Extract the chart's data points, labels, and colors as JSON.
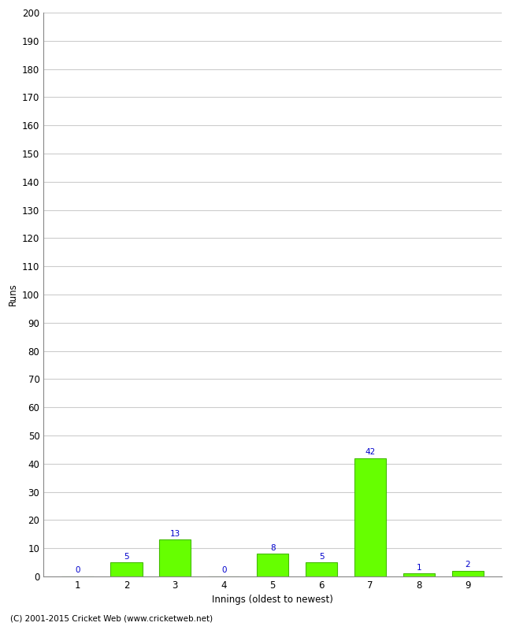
{
  "xlabel": "Innings (oldest to newest)",
  "ylabel": "Runs",
  "categories": [
    "1",
    "2",
    "3",
    "4",
    "5",
    "6",
    "7",
    "8",
    "9"
  ],
  "values": [
    0,
    5,
    13,
    0,
    8,
    5,
    42,
    1,
    2
  ],
  "bar_color": "#66ff00",
  "bar_edge_color": "#44bb00",
  "value_color": "#0000cc",
  "ylim": [
    0,
    200
  ],
  "yticks": [
    0,
    10,
    20,
    30,
    40,
    50,
    60,
    70,
    80,
    90,
    100,
    110,
    120,
    130,
    140,
    150,
    160,
    170,
    180,
    190,
    200
  ],
  "background_color": "#ffffff",
  "grid_color": "#cccccc",
  "footer": "(C) 2001-2015 Cricket Web (www.cricketweb.net)",
  "value_fontsize": 7.5,
  "label_fontsize": 8.5,
  "tick_fontsize": 8.5,
  "ylabel_fontsize": 8.5,
  "footer_fontsize": 7.5
}
